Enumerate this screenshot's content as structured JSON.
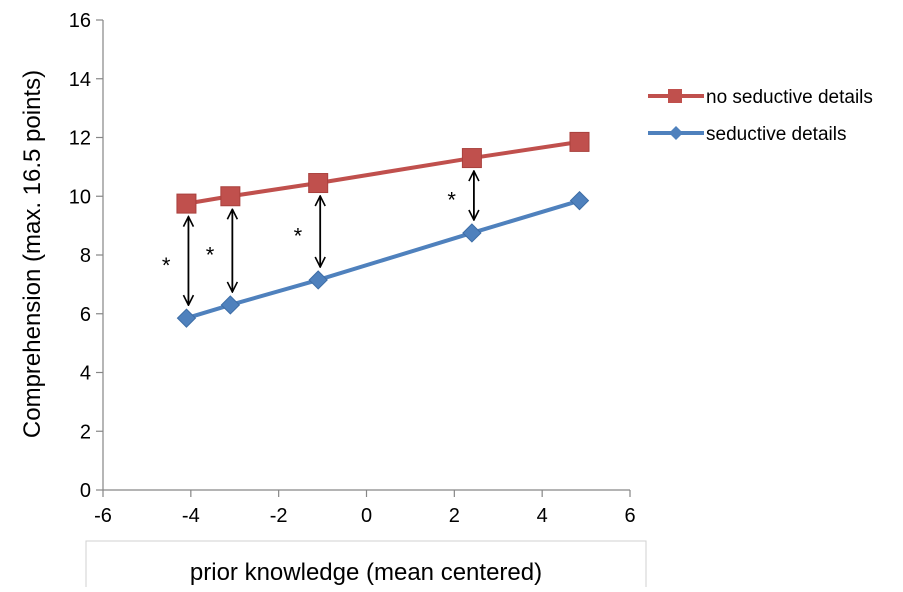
{
  "chart_data": {
    "type": "line",
    "xlabel": "prior knowledge (mean centered)",
    "ylabel": "Comprehension (max. 16.5 points)",
    "xlim": [
      -6,
      6
    ],
    "ylim": [
      0,
      16
    ],
    "x_ticks": [
      -6,
      -4,
      -2,
      0,
      2,
      4,
      6
    ],
    "y_ticks": [
      0,
      2,
      4,
      6,
      8,
      10,
      12,
      14,
      16
    ],
    "grid": false,
    "legend_position": "right",
    "series": [
      {
        "name": "no seductive details",
        "color": "#c0504d",
        "marker": "square",
        "points": [
          {
            "x": -4.1,
            "y": 9.75
          },
          {
            "x": -3.1,
            "y": 10.0
          },
          {
            "x": -1.1,
            "y": 10.45
          },
          {
            "x": 2.4,
            "y": 11.3
          },
          {
            "x": 4.85,
            "y": 11.85
          }
        ]
      },
      {
        "name": "seductive details",
        "color": "#4f81bd",
        "marker": "diamond",
        "points": [
          {
            "x": -4.1,
            "y": 5.85
          },
          {
            "x": -3.1,
            "y": 6.3
          },
          {
            "x": -1.1,
            "y": 7.15
          },
          {
            "x": 2.4,
            "y": 8.75
          },
          {
            "x": 4.85,
            "y": 9.85
          }
        ]
      }
    ],
    "annotations": [
      {
        "text": "*",
        "x": -4.1,
        "y_from": 5.85,
        "y_to": 9.75
      },
      {
        "text": "*",
        "x": -3.1,
        "y_from": 6.3,
        "y_to": 10.0
      },
      {
        "text": "*",
        "x": -1.1,
        "y_from": 7.15,
        "y_to": 10.45
      },
      {
        "text": "*",
        "x": 2.4,
        "y_from": 8.75,
        "y_to": 11.3
      }
    ]
  }
}
